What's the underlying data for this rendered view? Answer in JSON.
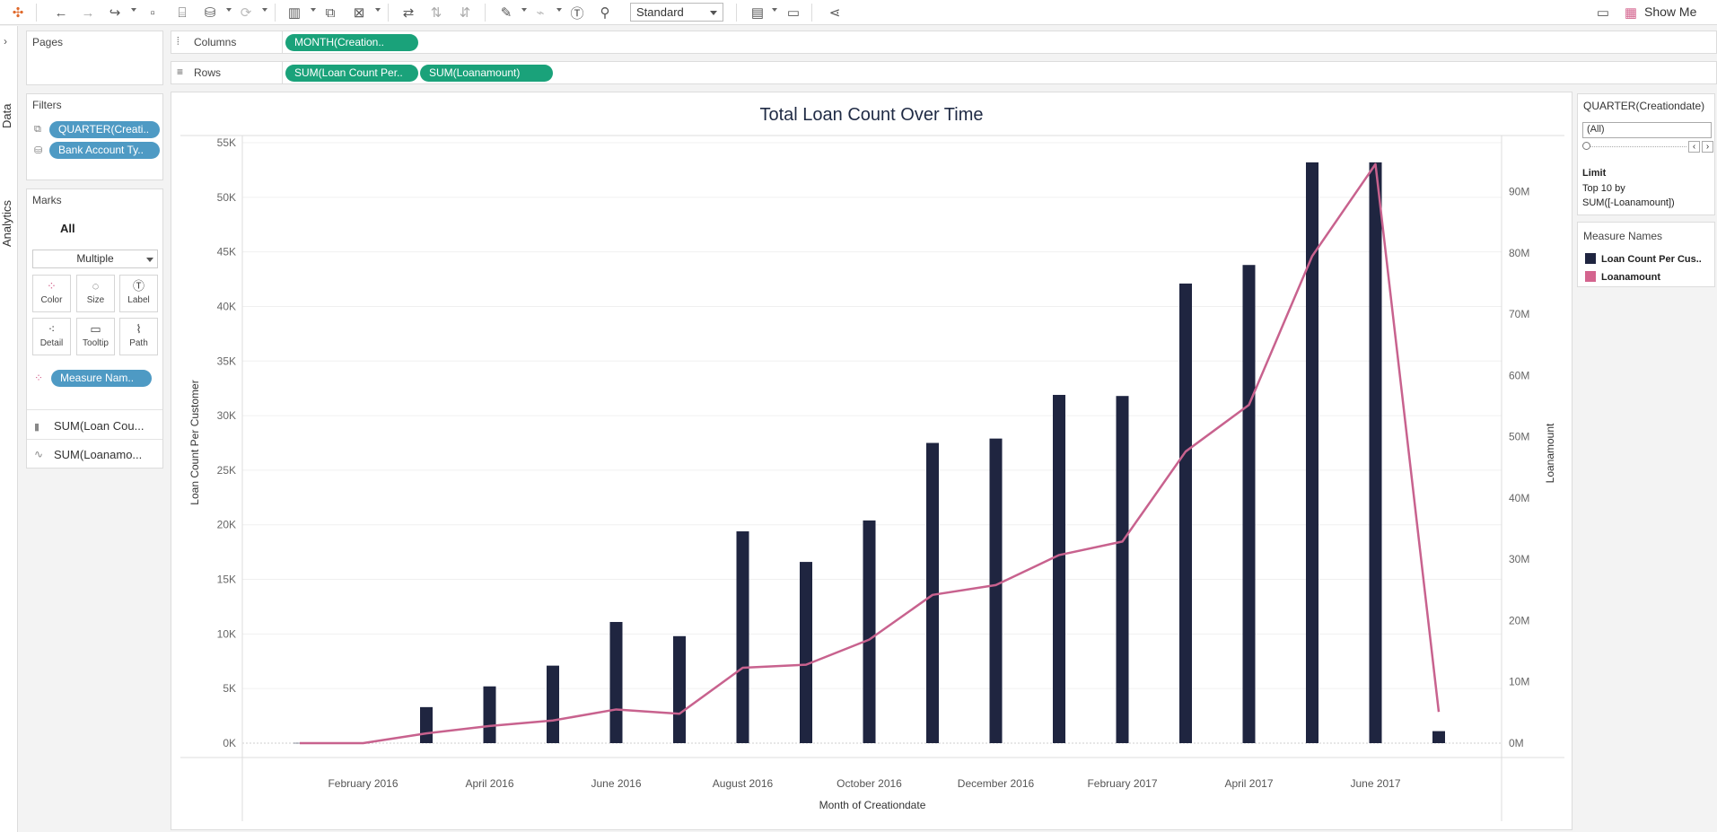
{
  "toolbar": {
    "fit_select": "Standard",
    "show_me": "Show Me"
  },
  "left_rail": {
    "data_tab": "Data",
    "analytics_tab": "Analytics"
  },
  "pages": {
    "title": "Pages"
  },
  "filters": {
    "title": "Filters",
    "items": [
      "QUARTER(Creati..",
      "Bank Account Ty.."
    ]
  },
  "marks": {
    "title": "Marks",
    "all_label": "All",
    "type_select": "Multiple",
    "buttons": [
      "Color",
      "Size",
      "Label",
      "Detail",
      "Tooltip",
      "Path"
    ],
    "measure_pill": "Measure Nam..",
    "measures": [
      "SUM(Loan Cou...",
      "SUM(Loanamo..."
    ]
  },
  "shelves": {
    "columns_label": "Columns",
    "columns_pill": "MONTH(Creation..",
    "rows_label": "Rows",
    "rows_pills": [
      "SUM(Loan Count Per..",
      "SUM(Loanamount)"
    ]
  },
  "filter_card": {
    "title": "QUARTER(Creationdate)",
    "value": "(All)",
    "limit_title": "Limit",
    "limit_text_1": "Top 10 by",
    "limit_text_2": "SUM([-Loanamount])"
  },
  "legend": {
    "title": "Measure Names",
    "items": [
      {
        "label": "Loan Count Per Cus..",
        "color": "#1f2540"
      },
      {
        "label": "Loanamount",
        "color": "#d4648e"
      }
    ]
  },
  "colors": {
    "bar": "#1f2540",
    "line": "#c8628e",
    "pill_blue": "#4e9ac4",
    "pill_green": "#1aa27a"
  },
  "chart_data": {
    "type": "bar",
    "title": "Total Loan Count Over Time",
    "xlabel": "Month of Creationdate",
    "ylabel": "Loan Count Per Customer",
    "y2label": "Loanamount",
    "x_tick_labels": [
      "February 2016",
      "April 2016",
      "June 2016",
      "August 2016",
      "October 2016",
      "December 2016",
      "February 2017",
      "April 2017",
      "June 2017"
    ],
    "y_ticks": [
      "0K",
      "5K",
      "10K",
      "15K",
      "20K",
      "25K",
      "30K",
      "35K",
      "40K",
      "45K",
      "50K",
      "55K"
    ],
    "y2_ticks": [
      "0M",
      "10M",
      "20M",
      "30M",
      "40M",
      "50M",
      "60M",
      "70M",
      "80M",
      "90M"
    ],
    "ylim": [
      0,
      55000
    ],
    "y2lim": [
      0,
      98000000
    ],
    "categories": [
      "2016-01",
      "2016-02",
      "2016-03",
      "2016-04",
      "2016-05",
      "2016-06",
      "2016-07",
      "2016-08",
      "2016-09",
      "2016-10",
      "2016-11",
      "2016-12",
      "2017-01",
      "2017-02",
      "2017-03",
      "2017-04",
      "2017-05",
      "2017-06",
      "2017-07"
    ],
    "series": [
      {
        "name": "Loan Count Per Cus..",
        "type": "bar",
        "values": [
          20,
          0,
          3300,
          5200,
          7100,
          11100,
          9800,
          19400,
          16600,
          20400,
          27500,
          27900,
          31900,
          31800,
          42100,
          43800,
          53200,
          53200,
          1100
        ]
      },
      {
        "name": "Loanamount",
        "type": "line",
        "values": [
          0,
          0,
          1600000,
          2800000,
          3700000,
          5500000,
          4800000,
          12300000,
          12800000,
          16900000,
          24200000,
          25800000,
          30700000,
          32900000,
          47600000,
          55200000,
          79500000,
          94500000,
          5100000
        ]
      }
    ]
  }
}
